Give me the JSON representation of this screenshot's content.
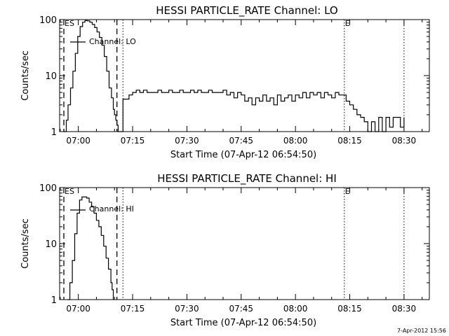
{
  "footer": {
    "timestamp": "7-Apr-2012 15:56"
  },
  "chart_data": [
    {
      "type": "line",
      "title": "HESSI PARTICLE_RATE Channel: LO",
      "xlabel": "Start Time (07-Apr-12 06:54:50)",
      "ylabel": "Counts/sec",
      "y_scale": "log",
      "ylim": [
        1,
        100
      ],
      "xlim": [
        "06:54:50",
        "08:37:00"
      ],
      "x_ticks": [
        "07:00",
        "07:15",
        "07:30",
        "07:45",
        "08:00",
        "08:15",
        "08:30"
      ],
      "y_ticks": [
        "1",
        "10",
        "100"
      ],
      "markers": [
        {
          "label": "ES",
          "time": "06:56:00",
          "style": "dashed"
        },
        {
          "label": "",
          "time": "07:10:40",
          "style": "dashed"
        },
        {
          "label": "",
          "time": "07:12:20",
          "style": "dotted"
        },
        {
          "label": "E",
          "time": "08:13:30",
          "style": "dotted"
        },
        {
          "label": "",
          "time": "08:30:00",
          "style": "dotted"
        }
      ],
      "series": [
        {
          "name": "Channel: LO",
          "x": [
            "06:55:50",
            "06:56:40",
            "06:57:10",
            "06:57:50",
            "06:58:30",
            "06:59:10",
            "06:59:50",
            "07:00:30",
            "07:01:10",
            "07:01:50",
            "07:02:30",
            "07:03:10",
            "07:03:50",
            "07:04:30",
            "07:05:10",
            "07:05:50",
            "07:06:30",
            "07:07:10",
            "07:07:50",
            "07:08:30",
            "07:09:10",
            "07:09:40",
            "07:10:00",
            "07:10:20",
            "07:10:40",
            "07:11:00",
            "07:11:20",
            "07:12:00",
            "07:12:20",
            "07:13:30",
            "07:14:00",
            "07:15:00",
            "07:16:00",
            "07:17:00",
            "07:18:00",
            "07:19:00",
            "07:20:00",
            "07:21:00",
            "07:22:00",
            "07:23:00",
            "07:24:00",
            "07:25:00",
            "07:26:00",
            "07:27:00",
            "07:28:00",
            "07:29:00",
            "07:30:00",
            "07:31:00",
            "07:32:00",
            "07:33:00",
            "07:34:00",
            "07:35:00",
            "07:36:00",
            "07:37:00",
            "07:38:00",
            "07:39:00",
            "07:40:00",
            "07:41:00",
            "07:42:00",
            "07:43:00",
            "07:44:00",
            "07:45:00",
            "07:46:00",
            "07:47:00",
            "07:48:00",
            "07:49:00",
            "07:50:00",
            "07:51:00",
            "07:52:00",
            "07:53:00",
            "07:54:00",
            "07:55:00",
            "07:56:00",
            "07:57:00",
            "07:58:00",
            "07:59:00",
            "08:00:00",
            "08:01:00",
            "08:02:00",
            "08:03:00",
            "08:04:00",
            "08:05:00",
            "08:06:00",
            "08:07:00",
            "08:08:00",
            "08:09:00",
            "08:10:00",
            "08:11:00",
            "08:12:00",
            "08:13:00",
            "08:14:00",
            "08:15:00",
            "08:16:00",
            "08:17:00",
            "08:18:00",
            "08:19:00",
            "08:20:00",
            "08:21:00",
            "08:22:00",
            "08:23:00",
            "08:24:00",
            "08:25:00",
            "08:26:00",
            "08:27:00",
            "08:28:00",
            "08:29:00",
            "08:30:00"
          ],
          "y": [
            1,
            1.6,
            3,
            6,
            12,
            25,
            50,
            75,
            90,
            96,
            95,
            90,
            82,
            72,
            60,
            48,
            35,
            22,
            12,
            6,
            4,
            2.5,
            2,
            1.6,
            1.3,
            1,
            1,
            1,
            3.8,
            3.8,
            4.5,
            5,
            5.5,
            5,
            5.5,
            5,
            5,
            5,
            5.5,
            5,
            5,
            5.5,
            5,
            5,
            5.5,
            5,
            5,
            5.5,
            5,
            5.5,
            5,
            5,
            5.5,
            5,
            5,
            5,
            5.5,
            4.5,
            5,
            4,
            5,
            4.5,
            3.5,
            4,
            3,
            4,
            3.5,
            4.5,
            3.5,
            4,
            3,
            4.5,
            3.5,
            4,
            4.5,
            3.5,
            4.5,
            4,
            5,
            4,
            5,
            4.5,
            5,
            4,
            5,
            4.5,
            4,
            5,
            4.5,
            4.5,
            3.5,
            3,
            2.5,
            2,
            1.8,
            1.5,
            1,
            1.5,
            1,
            1.8,
            1,
            1.8,
            1.2,
            1.8,
            1.8,
            1.2,
            1.8
          ]
        }
      ]
    },
    {
      "type": "line",
      "title": "HESSI PARTICLE_RATE Channel: HI",
      "xlabel": "Start Time (07-Apr-12 06:54:50)",
      "ylabel": "Counts/sec",
      "y_scale": "log",
      "ylim": [
        1,
        100
      ],
      "xlim": [
        "06:54:50",
        "08:37:00"
      ],
      "x_ticks": [
        "07:00",
        "07:15",
        "07:30",
        "07:45",
        "08:00",
        "08:15",
        "08:30"
      ],
      "y_ticks": [
        "1",
        "10",
        "100"
      ],
      "markers": [
        {
          "label": "ES",
          "time": "06:56:00",
          "style": "dashed"
        },
        {
          "label": "",
          "time": "07:10:40",
          "style": "dashed"
        },
        {
          "label": "",
          "time": "07:12:20",
          "style": "dotted"
        },
        {
          "label": "E",
          "time": "08:13:30",
          "style": "dotted"
        },
        {
          "label": "",
          "time": "08:30:00",
          "style": "dotted"
        }
      ],
      "series": [
        {
          "name": "Channel: HI",
          "x": [
            "06:57:00",
            "06:57:40",
            "06:58:20",
            "06:59:00",
            "06:59:40",
            "07:00:20",
            "07:01:00",
            "07:01:40",
            "07:02:20",
            "07:03:00",
            "07:03:40",
            "07:04:20",
            "07:05:00",
            "07:05:40",
            "07:06:20",
            "07:07:00",
            "07:07:40",
            "07:08:20",
            "07:09:00",
            "07:09:20",
            "07:09:40"
          ],
          "y": [
            1,
            2,
            5,
            15,
            35,
            60,
            68,
            68,
            65,
            55,
            45,
            35,
            26,
            20,
            14,
            9,
            5.5,
            3.5,
            2,
            1.5,
            1
          ]
        }
      ]
    }
  ]
}
